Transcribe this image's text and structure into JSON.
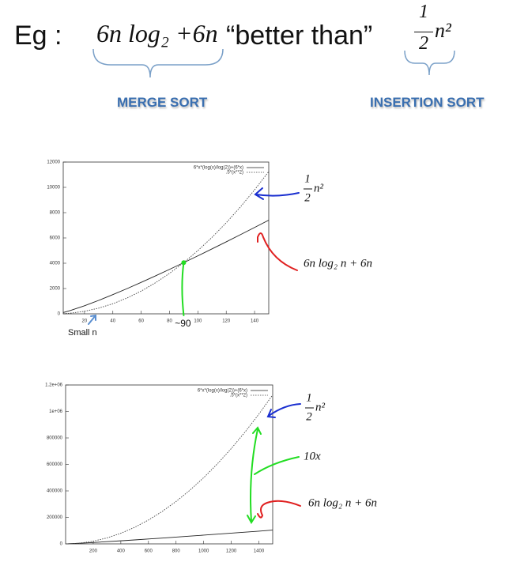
{
  "header": {
    "prefix": "Eg :",
    "left_formula": "6n log₂ +6n",
    "middle": "“better than”",
    "right_formula": {
      "numerator": "1",
      "denominator": "2",
      "term": "n²"
    },
    "left_label": "MERGE SORT",
    "right_label": "INSERTION SORT"
  },
  "chart_data": [
    {
      "type": "line",
      "x": [
        5,
        10,
        20,
        30,
        40,
        50,
        60,
        70,
        80,
        90,
        100,
        110,
        120,
        130,
        140,
        150
      ],
      "series": [
        {
          "name": "6*x*(log(x)/log(2))+(6*x)",
          "color": "#222222",
          "style": "solid",
          "values": [
            100,
            259,
            639,
            1063,
            1517,
            1993,
            2487,
            2994,
            3514,
            4046,
            4586,
            5136,
            5693,
            6257,
            6828,
            7406
          ]
        },
        {
          "name": ".5*(x**2)",
          "color": "#444444",
          "style": "dotted",
          "values": [
            12.5,
            50,
            200,
            450,
            800,
            1250,
            1800,
            2450,
            3200,
            4050,
            5000,
            6050,
            7200,
            8450,
            9800,
            11250
          ]
        }
      ],
      "xlim": [
        5,
        150
      ],
      "xticks": [
        20,
        40,
        60,
        80,
        100,
        120,
        140
      ],
      "ylim": [
        0,
        12000
      ],
      "yticks": [
        0,
        2000,
        4000,
        6000,
        8000,
        10000,
        12000
      ],
      "legend": "top-right",
      "annotations": [
        {
          "numerator": "1",
          "denominator": "2",
          "term": "n²"
        },
        {
          "text": "6n log₂ n + 6n"
        }
      ],
      "crossover": {
        "x": 90,
        "y": 4050,
        "label": "~90",
        "color": "#22dd22"
      },
      "note": "Small n"
    },
    {
      "type": "line",
      "x": [
        10,
        100,
        200,
        300,
        400,
        500,
        600,
        700,
        800,
        900,
        1000,
        1100,
        1200,
        1300,
        1400,
        1500
      ],
      "series": [
        {
          "name": "6*x*(log(x)/log(2))+(6*x)",
          "color": "#222222",
          "style": "solid",
          "values": [
            259,
            4586,
            10373,
            16612,
            23145,
            29897,
            36825,
            43894,
            51090,
            58396,
            65795,
            73280,
            80849,
            88484,
            96189,
            103959
          ]
        },
        {
          "name": ".5*(x**2)",
          "color": "#444444",
          "style": "dotted",
          "values": [
            50,
            5000,
            20000,
            45000,
            80000,
            125000,
            180000,
            245000,
            320000,
            405000,
            500000,
            605000,
            720000,
            845000,
            980000,
            1125000
          ]
        }
      ],
      "xlim": [
        0,
        1500
      ],
      "xticks": [
        200,
        400,
        600,
        800,
        1000,
        1200,
        1400
      ],
      "ylim": [
        0,
        1200000
      ],
      "yticks": [
        0,
        {
          "value": 200000,
          "label": "200000"
        },
        {
          "value": 400000,
          "label": "400000"
        },
        {
          "value": 600000,
          "label": "600000"
        },
        {
          "value": 800000,
          "label": "800000"
        },
        {
          "value": 1000000,
          "label": "1e+06"
        },
        {
          "value": 1200000,
          "label": "1.2e+06"
        }
      ],
      "legend": "top-right",
      "annotations": [
        {
          "numerator": "1",
          "denominator": "2",
          "term": "n²"
        },
        {
          "text": "10x"
        },
        {
          "text": "6n log₂ n + 6n"
        }
      ]
    }
  ]
}
